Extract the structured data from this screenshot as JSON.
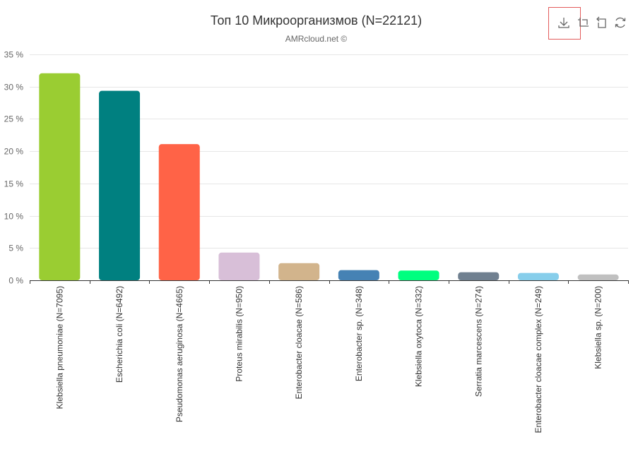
{
  "title": "Топ 10 Микроорганизмов (N=22121)",
  "subtitle": "AMRcloud.net ©",
  "toolbox": {
    "icons": [
      "download-icon",
      "zoom-icon",
      "zoom-reset-icon",
      "restore-icon"
    ]
  },
  "colors": {
    "axis": "#333333",
    "grid": "#e6e6e6",
    "label": "#666666",
    "tick_text": "#333333"
  },
  "chart_data": {
    "type": "bar",
    "categories": [
      "Klebsiella pneumoniae (N=7095)",
      "Escherichia coli (N=6492)",
      "Pseudomonas aeruginosa (N=4665)",
      "Proteus mirabilis (N=950)",
      "Enterobacter cloacae (N=586)",
      "Enterobacter sp. (N=348)",
      "Klebsiella oxytoca (N=332)",
      "Serratia marcescens (N=274)",
      "Enterobacter cloacae complex (N=249)",
      "Klebsiella sp. (N=200)"
    ],
    "values": [
      32.07,
      29.35,
      21.09,
      4.29,
      2.65,
      1.57,
      1.5,
      1.24,
      1.13,
      0.9
    ],
    "colors": [
      "#9acd32",
      "#008080",
      "#ff6347",
      "#d8bfd8",
      "#d2b48c",
      "#4682b4",
      "#00ff7f",
      "#708090",
      "#87ceeb",
      "#c0c0c0"
    ],
    "ylim": [
      0,
      35
    ],
    "yticks": [
      "0 %",
      "5 %",
      "10 %",
      "15 %",
      "20 %",
      "25 %",
      "30 %",
      "35 %"
    ],
    "ytick_values": [
      0,
      5,
      10,
      15,
      20,
      25,
      30,
      35
    ],
    "grid": true,
    "xlabel": "",
    "ylabel": ""
  }
}
